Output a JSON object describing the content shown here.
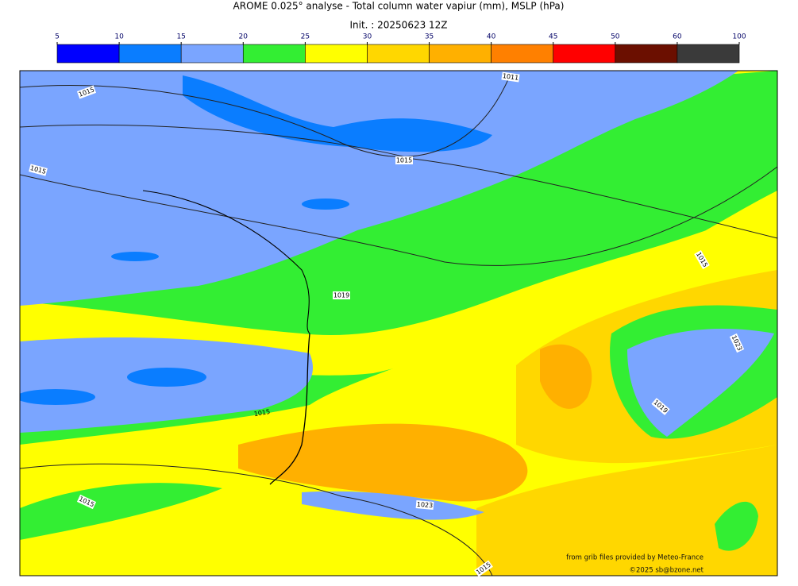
{
  "title": "AROME 0.025° analyse - Total column water vapiur (mm), MSLP (hPa)",
  "init": "Init. : 20250623 12Z",
  "colorbar": {
    "ticks": [
      5,
      10,
      15,
      20,
      25,
      30,
      35,
      40,
      45,
      50,
      60,
      100
    ],
    "colors": [
      "#0000ff",
      "#0a7dff",
      "#7aa5ff",
      "#33ee33",
      "#ffff00",
      "#ffd700",
      "#ffb000",
      "#ff8000",
      "#ff0000",
      "#6b0f00",
      "#3a3a3a"
    ]
  },
  "isobar_labels": [
    "1015",
    "1011",
    "1015",
    "1015",
    "1019",
    "1015",
    "1023",
    "1019",
    "1015",
    "1023",
    "1015",
    "1015"
  ],
  "credits": [
    "from grib files provided by Meteo-France",
    "©2025 sb@bzone.net"
  ]
}
